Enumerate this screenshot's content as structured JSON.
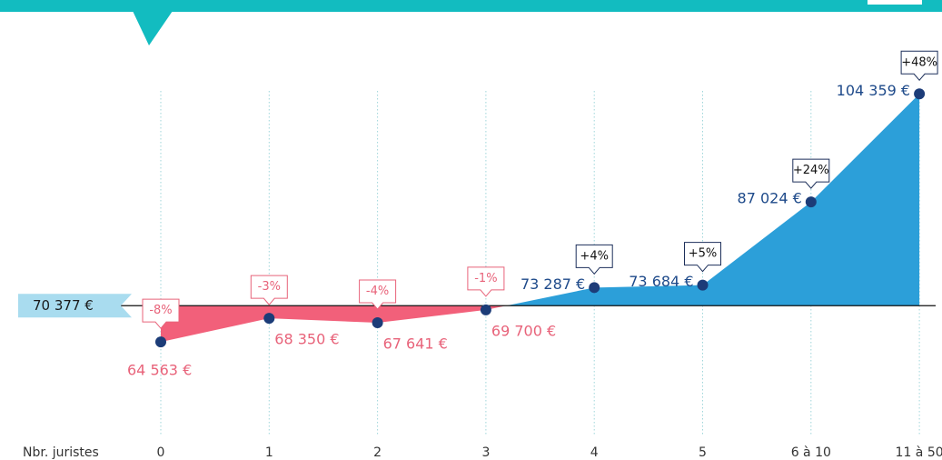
{
  "chart_data": {
    "type": "area",
    "x_label": "Nbr. juristes",
    "categories": [
      "0",
      "1",
      "2",
      "3",
      "4",
      "5",
      "6 à 10",
      "11 à 50"
    ],
    "values": [
      64563,
      68350,
      67641,
      69700,
      73287,
      73684,
      87024,
      104359
    ],
    "value_labels": [
      "64 563 €",
      "68 350 €",
      "67 641 €",
      "69 700 €",
      "73 287 €",
      "73 684 €",
      "87 024 €",
      "104 359 €"
    ],
    "change_labels": [
      "-8%",
      "-3%",
      "-4%",
      "-1%",
      "+4%",
      "+5%",
      "+24%",
      "+48%"
    ],
    "baseline": {
      "value": 70377,
      "label": "70 377 €"
    },
    "ylim": [
      50000,
      120000
    ],
    "colors": {
      "below": "#f2607a",
      "above": "#2c9fd9",
      "point": "#1c3c78",
      "below_text": "#e8637a",
      "above_text": "#1e4a8a"
    }
  }
}
